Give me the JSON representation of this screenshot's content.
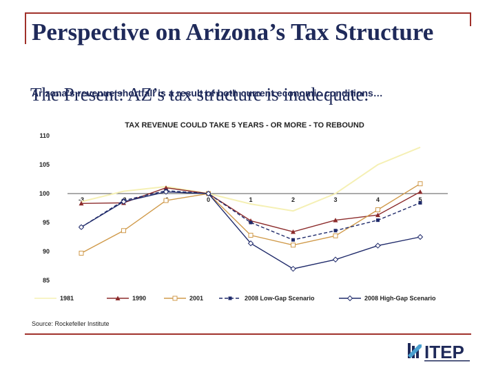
{
  "slide": {
    "title": "Perspective on Arizona’s Tax Structure",
    "subtitle_large": "The Present: AZ’s tax structure is inadequate.",
    "subtitle_small": "Arizona’s revenue shortfall is a result of both current economic conditions…",
    "source": "Source: Rockefeller Institute",
    "logo_text": "ITEP",
    "colors": {
      "frame": "#a0302a",
      "title": "#1f2a5a"
    }
  },
  "chart_data": {
    "type": "line",
    "title": "TAX REVENUE COULD TAKE 5 YEARS - OR MORE - TO REBOUND",
    "xlabel": "",
    "ylabel": "",
    "x": [
      "-3",
      "-2",
      "-1",
      "0",
      "1",
      "2",
      "3",
      "4",
      "5"
    ],
    "x_ticks": [
      "-3",
      "-2",
      "-1",
      "0",
      "1",
      "2",
      "3",
      "4",
      "5"
    ],
    "ylim": [
      85,
      110
    ],
    "y_ticks": [
      "110",
      "105",
      "100",
      "95",
      "90",
      "85"
    ],
    "grid": false,
    "legend_position": "bottom",
    "series": [
      {
        "name": "1981",
        "color": "#f5f0b4",
        "marker": "none",
        "dash": "solid",
        "values": [
          98.6,
          100.4,
          101.2,
          100.0,
          98.2,
          97.0,
          100.0,
          105.0,
          108.0
        ]
      },
      {
        "name": "1990",
        "color": "#8b2a2a",
        "marker": "triangle",
        "dash": "solid",
        "values": [
          98.3,
          98.4,
          101.0,
          100.0,
          95.3,
          93.4,
          95.4,
          96.3,
          100.3
        ]
      },
      {
        "name": "2001",
        "color": "#d09a4a",
        "marker": "square-open",
        "dash": "solid",
        "values": [
          89.7,
          93.6,
          98.8,
          100.0,
          92.8,
          91.1,
          92.7,
          97.2,
          101.7
        ]
      },
      {
        "name": "2008 Low-Gap Scenario",
        "color": "#1f2a6a",
        "marker": "square",
        "dash": "dashed",
        "values": [
          94.2,
          98.8,
          100.5,
          100.0,
          95.0,
          92.0,
          93.6,
          95.4,
          98.4
        ]
      },
      {
        "name": "2008 High-Gap Scenario",
        "color": "#1f2a6a",
        "marker": "diamond-open",
        "dash": "solid",
        "values": [
          94.2,
          98.6,
          100.3,
          100.0,
          91.4,
          87.0,
          88.6,
          91.0,
          92.5
        ]
      }
    ]
  }
}
